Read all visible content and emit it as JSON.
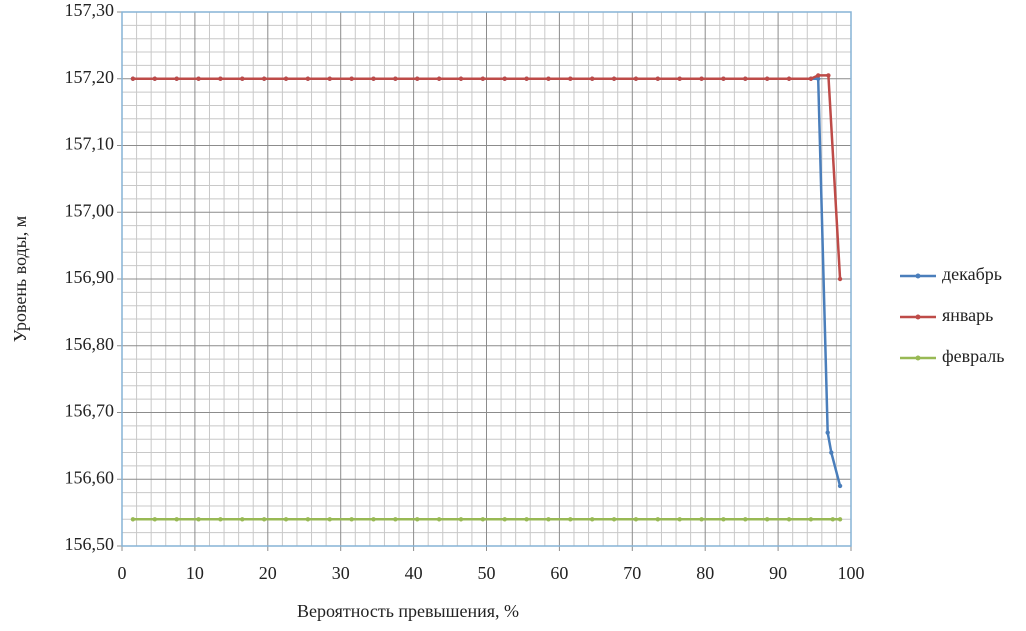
{
  "chart_data": {
    "type": "line",
    "xlabel": "Вероятность превышения, %",
    "ylabel": "Уровень воды, м",
    "xlim": [
      0,
      100
    ],
    "xticks": [
      0,
      10,
      20,
      30,
      40,
      50,
      60,
      70,
      80,
      90,
      100
    ],
    "ylim": [
      156.5,
      157.3
    ],
    "yticks": [
      {
        "value": 156.5,
        "label": "156,50"
      },
      {
        "value": 156.6,
        "label": "156,60"
      },
      {
        "value": 156.7,
        "label": "156,70"
      },
      {
        "value": 156.8,
        "label": "156,80"
      },
      {
        "value": 156.9,
        "label": "156,90"
      },
      {
        "value": 157.0,
        "label": "157,00"
      },
      {
        "value": 157.1,
        "label": "157,10"
      },
      {
        "value": 157.2,
        "label": "157,20"
      },
      {
        "value": 157.3,
        "label": "157,30"
      }
    ],
    "grid": true,
    "minor_grid": true,
    "legend": "right",
    "series": [
      {
        "name": "декабрь",
        "color": "#4a7ebb",
        "x": [
          1.5,
          4.5,
          7.5,
          10.5,
          13.5,
          16.5,
          19.5,
          22.5,
          25.5,
          28.5,
          31.5,
          34.5,
          37.5,
          40.5,
          43.5,
          46.5,
          49.5,
          52.5,
          55.5,
          58.5,
          61.5,
          64.5,
          67.5,
          70.5,
          73.5,
          76.5,
          79.5,
          82.5,
          85.5,
          88.5,
          91.5,
          94.5,
          95.5,
          96.8,
          97.3,
          98.5
        ],
        "values": [
          157.2,
          157.2,
          157.2,
          157.2,
          157.2,
          157.2,
          157.2,
          157.2,
          157.2,
          157.2,
          157.2,
          157.2,
          157.2,
          157.2,
          157.2,
          157.2,
          157.2,
          157.2,
          157.2,
          157.2,
          157.2,
          157.2,
          157.2,
          157.2,
          157.2,
          157.2,
          157.2,
          157.2,
          157.2,
          157.2,
          157.2,
          157.2,
          157.2,
          156.67,
          156.64,
          156.59
        ]
      },
      {
        "name": "январь",
        "color": "#be4b48",
        "x": [
          1.5,
          4.5,
          7.5,
          10.5,
          13.5,
          16.5,
          19.5,
          22.5,
          25.5,
          28.5,
          31.5,
          34.5,
          37.5,
          40.5,
          43.5,
          46.5,
          49.5,
          52.5,
          55.5,
          58.5,
          61.5,
          64.5,
          67.5,
          70.5,
          73.5,
          76.5,
          79.5,
          82.5,
          85.5,
          88.5,
          91.5,
          94.5,
          95.5,
          96.9,
          98.5
        ],
        "values": [
          157.2,
          157.2,
          157.2,
          157.2,
          157.2,
          157.2,
          157.2,
          157.2,
          157.2,
          157.2,
          157.2,
          157.2,
          157.2,
          157.2,
          157.2,
          157.2,
          157.2,
          157.2,
          157.2,
          157.2,
          157.2,
          157.2,
          157.2,
          157.2,
          157.2,
          157.2,
          157.2,
          157.2,
          157.2,
          157.2,
          157.2,
          157.2,
          157.205,
          157.205,
          156.9
        ]
      },
      {
        "name": "февраль",
        "color": "#98b954",
        "x": [
          1.5,
          4.5,
          7.5,
          10.5,
          13.5,
          16.5,
          19.5,
          22.5,
          25.5,
          28.5,
          31.5,
          34.5,
          37.5,
          40.5,
          43.5,
          46.5,
          49.5,
          52.5,
          55.5,
          58.5,
          61.5,
          64.5,
          67.5,
          70.5,
          73.5,
          76.5,
          79.5,
          82.5,
          85.5,
          88.5,
          91.5,
          94.5,
          97.5,
          98.5
        ],
        "values": [
          156.54,
          156.54,
          156.54,
          156.54,
          156.54,
          156.54,
          156.54,
          156.54,
          156.54,
          156.54,
          156.54,
          156.54,
          156.54,
          156.54,
          156.54,
          156.54,
          156.54,
          156.54,
          156.54,
          156.54,
          156.54,
          156.54,
          156.54,
          156.54,
          156.54,
          156.54,
          156.54,
          156.54,
          156.54,
          156.54,
          156.54,
          156.54,
          156.54,
          156.54
        ]
      }
    ]
  }
}
